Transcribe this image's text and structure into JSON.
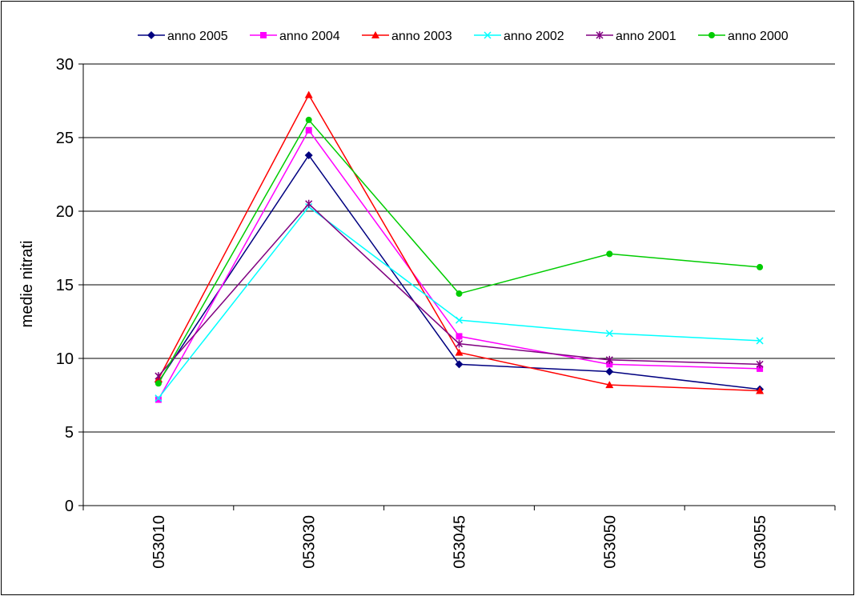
{
  "chart_data": {
    "type": "line",
    "title": "",
    "xlabel": "",
    "ylabel": "medie nitrati",
    "ylim": [
      0,
      30
    ],
    "yticks": [
      0,
      5,
      10,
      15,
      20,
      25,
      30
    ],
    "grid": true,
    "legend_position": "top",
    "categories": [
      "053010",
      "053030",
      "053045",
      "053050",
      "053055"
    ],
    "series": [
      {
        "name": "anno 2005",
        "color": "#000080",
        "marker": "diamond",
        "values": [
          8.4,
          23.8,
          9.6,
          9.1,
          7.9
        ]
      },
      {
        "name": "anno 2004",
        "color": "#FF00FF",
        "marker": "square",
        "values": [
          7.2,
          25.5,
          11.5,
          9.6,
          9.3
        ]
      },
      {
        "name": "anno 2003",
        "color": "#FF0000",
        "marker": "triangle",
        "values": [
          8.6,
          27.9,
          10.4,
          8.2,
          7.8
        ]
      },
      {
        "name": "anno 2002",
        "color": "#00FFFF",
        "marker": "x",
        "values": [
          7.3,
          20.3,
          12.6,
          11.7,
          11.2
        ]
      },
      {
        "name": "anno 2001",
        "color": "#800080",
        "marker": "star",
        "values": [
          8.8,
          20.5,
          11.0,
          9.9,
          9.6
        ]
      },
      {
        "name": "anno 2000",
        "color": "#00CC00",
        "marker": "circle",
        "values": [
          8.3,
          26.2,
          14.4,
          17.1,
          16.2
        ]
      }
    ]
  }
}
